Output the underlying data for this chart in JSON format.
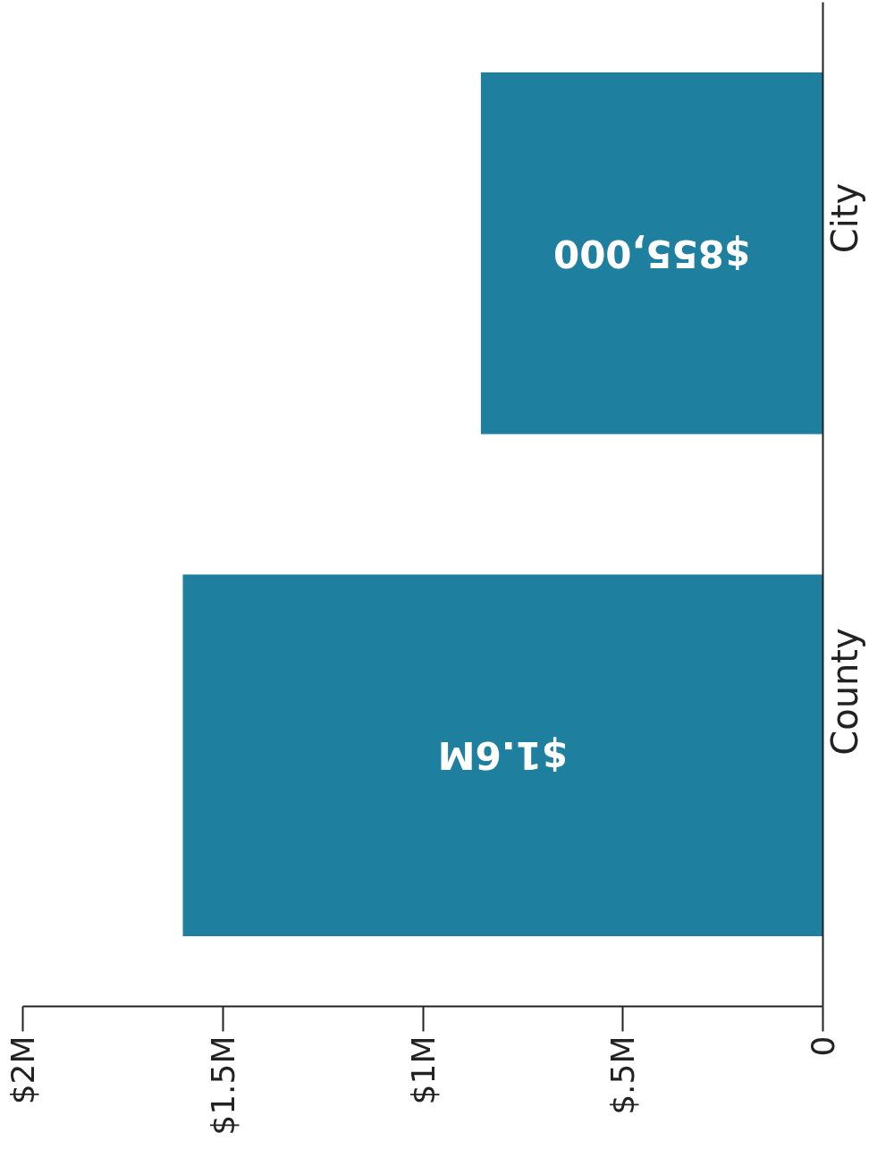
{
  "chart_data": {
    "type": "bar",
    "orientation": "horizontal",
    "categories": [
      "City",
      "County"
    ],
    "values": [
      855000,
      1600000
    ],
    "color": "#1f7f9e",
    "value_labels": [
      "$855,000",
      "$1.6M"
    ],
    "xlim": [
      2000000,
      0
    ],
    "xticks": [
      {
        "value": 2000000,
        "label": "$2M"
      },
      {
        "value": 1500000,
        "label": "$1.5M"
      },
      {
        "value": 1000000,
        "label": "$1M"
      },
      {
        "value": 500000,
        "label": "$.5M"
      },
      0
    ],
    "grid": false
  }
}
